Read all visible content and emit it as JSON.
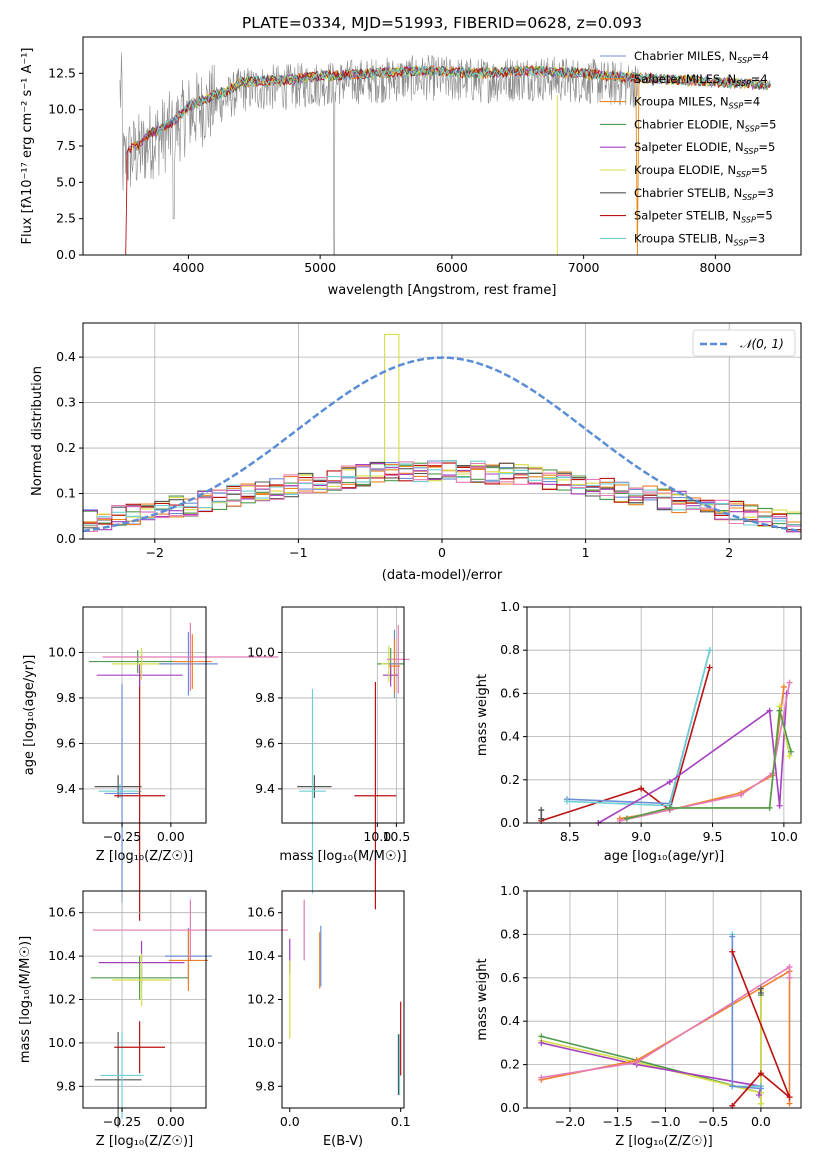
{
  "title": "PLATE=0334, MJD=51993, FIBERID=0628, z=0.093",
  "colors": [
    "#6b8fd6",
    "#f07f2a",
    "#e58a18",
    "#4f9a4f",
    "#a640c0",
    "#d8dd45",
    "#555555",
    "#bb1111",
    "#6fd0d4",
    "#e57ab8",
    "#f48484"
  ],
  "legend_normal": "𝒩(0, 1)",
  "chart_data": [
    {
      "type": "line",
      "title": "PLATE=0334, MJD=51993, FIBERID=0628, z=0.093",
      "xlabel": "wavelength [Angstrom, rest frame]",
      "ylabel": "Flux [fλ10⁻¹⁷ erg cm⁻² s⁻¹ A⁻¹]",
      "xlim": [
        3200,
        8650
      ],
      "ylim": [
        0,
        15
      ],
      "xticks": [
        "4000",
        "5000",
        "6000",
        "7000",
        "8000"
      ],
      "yticks": [
        "0.0",
        "2.5",
        "5.0",
        "7.5",
        "10.0",
        "12.5"
      ],
      "legend_position": "right",
      "series": [
        {
          "label": "Chabrier MILES, N",
          "sub": "SSP",
          "tail": "=4",
          "color": "#6b8fd6"
        },
        {
          "label": "Salpeter MILES, N",
          "sub": "SSP",
          "tail": "=4",
          "color": "#f07f2a"
        },
        {
          "label": "Kroupa MILES, N",
          "sub": "SSP",
          "tail": "=4",
          "color": "#e58a18"
        },
        {
          "label": "Chabrier ELODIE, N",
          "sub": "SSP",
          "tail": "=5",
          "color": "#4f9a4f"
        },
        {
          "label": "Salpeter ELODIE, N",
          "sub": "SSP",
          "tail": "=5",
          "color": "#a640c0"
        },
        {
          "label": "Kroupa ELODIE, N",
          "sub": "SSP",
          "tail": "=5",
          "color": "#d8dd45"
        },
        {
          "label": "Chabrier STELIB, N",
          "sub": "SSP",
          "tail": "=3",
          "color": "#555555"
        },
        {
          "label": "Salpeter STELIB, N",
          "sub": "SSP",
          "tail": "=5",
          "color": "#bb1111"
        },
        {
          "label": "Kroupa STELIB, N",
          "sub": "SSP",
          "tail": "=3",
          "color": "#6fd0d4"
        }
      ],
      "spectrum_nodes": {
        "x": [
          3500,
          3550,
          3650,
          3700,
          3800,
          3900,
          4000,
          4100,
          4200,
          4300,
          4400,
          4600,
          4800,
          5000,
          5200,
          5400,
          5600,
          5800,
          6000,
          6200,
          6400,
          6600,
          6800,
          7000,
          7200,
          7400,
          7600,
          7800,
          8000,
          8200,
          8400
        ],
        "y": [
          7.0,
          7.6,
          8.0,
          8.6,
          9.0,
          9.6,
          10.5,
          10.9,
          11.3,
          11.6,
          12.2,
          12.3,
          12.4,
          12.6,
          12.7,
          12.8,
          12.9,
          13.0,
          12.9,
          12.8,
          12.9,
          13.0,
          12.9,
          12.8,
          12.6,
          12.5,
          12.4,
          12.3,
          12.2,
          12.1,
          12.0
        ]
      },
      "data_end_x": 7420
    },
    {
      "type": "line",
      "xlabel": "(data-model)/error",
      "ylabel": "Normed distribution",
      "xlim": [
        -2.5,
        2.5
      ],
      "ylim": [
        0,
        0.475
      ],
      "xticks": [
        "−2",
        "−1",
        "0",
        "1",
        "2"
      ],
      "yticks": [
        "0.0",
        "0.1",
        "0.2",
        "0.3",
        "0.4"
      ],
      "grid": true,
      "legend_position": "top-right",
      "bins_start": -2.5,
      "bin_width": 0.1,
      "reference": "normal(0, 1)"
    },
    {
      "type": "scatter",
      "xlabel": "Z [log₁₀(Z/Z☉)]",
      "ylabel": "age  [log₁₀(age/yr)]",
      "xlim": [
        -0.45,
        0.18
      ],
      "ylim": [
        9.25,
        10.2
      ],
      "xticks": [
        "−0.25",
        "0.00"
      ],
      "yticks": [
        "9.4",
        "9.6",
        "9.8",
        "10.0"
      ],
      "grid": true,
      "points": [
        {
          "x": -0.27,
          "y": 9.41,
          "xerr": 0.12,
          "yerr": 0.05,
          "color": "#555555"
        },
        {
          "x": -0.26,
          "y": 9.39,
          "xerr": 0.11,
          "yerr": 0.03,
          "color": "#6fd0d4"
        },
        {
          "x": -0.25,
          "y": 9.38,
          "xerr": 0.09,
          "yerr": 0.48,
          "color": "#6b8fd6"
        },
        {
          "x": -0.16,
          "y": 9.37,
          "xerr": 0.13,
          "yerr": 0.55,
          "color": "#bb1111"
        },
        {
          "x": -0.17,
          "y": 9.96,
          "xerr": 0.25,
          "yerr": 0.05,
          "color": "#4f9a4f"
        },
        {
          "x": -0.16,
          "y": 9.9,
          "xerr": 0.22,
          "yerr": 0.05,
          "color": "#a640c0"
        },
        {
          "x": -0.15,
          "y": 9.95,
          "xerr": 0.15,
          "yerr": 0.07,
          "color": "#d8dd45"
        },
        {
          "x": 0.09,
          "y": 9.95,
          "xerr": 0.15,
          "yerr": 0.14,
          "color": "#6b8fd6"
        },
        {
          "x": 0.1,
          "y": 9.98,
          "xerr": 0.45,
          "yerr": 0.15,
          "color": "#e57ab8"
        },
        {
          "x": 0.11,
          "y": 9.96,
          "xerr": 0.1,
          "yerr": 0.12,
          "color": "#f07f2a"
        }
      ]
    },
    {
      "type": "scatter",
      "xlabel": "mass [log₁₀(M/M☉)]",
      "ylabel": "",
      "xlim": [
        7.5,
        10.7
      ],
      "ylim": [
        9.25,
        10.2
      ],
      "xticks": [
        "10.0",
        "10.5"
      ],
      "yticks": [
        "9.4",
        "9.6",
        "9.8",
        "10.0"
      ],
      "grid": true,
      "points": [
        {
          "x": 8.35,
          "y": 9.41,
          "xerr": 0.45,
          "yerr": 0.05,
          "color": "#555555"
        },
        {
          "x": 8.3,
          "y": 9.39,
          "xerr": 0.35,
          "yerr": 0.45,
          "color": "#6fd0d4"
        },
        {
          "x": 9.95,
          "y": 9.37,
          "xerr": 0.55,
          "yerr": 0.5,
          "color": "#bb1111"
        },
        {
          "x": 10.35,
          "y": 9.95,
          "xerr": 0.35,
          "yerr": 0.07,
          "color": "#4f9a4f"
        },
        {
          "x": 10.35,
          "y": 9.9,
          "xerr": 0.2,
          "yerr": 0.05,
          "color": "#a640c0"
        },
        {
          "x": 10.3,
          "y": 9.95,
          "xerr": 0.2,
          "yerr": 0.08,
          "color": "#d8dd45"
        },
        {
          "x": 10.45,
          "y": 9.95,
          "xerr": 0.15,
          "yerr": 0.15,
          "color": "#6b8fd6"
        },
        {
          "x": 10.55,
          "y": 9.97,
          "xerr": 0.3,
          "yerr": 0.15,
          "color": "#e57ab8"
        },
        {
          "x": 10.45,
          "y": 9.94,
          "xerr": 0.15,
          "yerr": 0.12,
          "color": "#f07f2a"
        }
      ]
    },
    {
      "type": "line",
      "xlabel": "age  [log₁₀(age/yr)]",
      "ylabel": "mass weight",
      "xlim": [
        8.2,
        10.12
      ],
      "ylim": [
        0,
        1.0
      ],
      "xticks": [
        "8.5",
        "9.0",
        "9.5",
        "10.0"
      ],
      "yticks": [
        "0.0",
        "0.2",
        "0.4",
        "0.6",
        "0.8",
        "1.0"
      ],
      "grid": true,
      "series": [
        {
          "color": "#bb1111",
          "x": [
            8.3,
            9.0,
            9.2,
            9.48
          ],
          "y": [
            0.01,
            0.16,
            0.06,
            0.72
          ]
        },
        {
          "color": "#6b8fd6",
          "x": [
            8.48,
            9.2,
            9.48
          ],
          "y": [
            0.11,
            0.09,
            0.8
          ]
        },
        {
          "color": "#6fd0d4",
          "x": [
            8.48,
            9.2,
            9.48
          ],
          "y": [
            0.1,
            0.08,
            0.8
          ]
        },
        {
          "color": "#555555",
          "x": [
            8.3,
            8.3
          ],
          "y": [
            0.02,
            0.06
          ]
        },
        {
          "color": "#a640c0",
          "x": [
            8.7,
            9.2,
            9.9,
            9.97,
            10.02
          ],
          "y": [
            0.0,
            0.19,
            0.52,
            0.08,
            0.6
          ]
        },
        {
          "color": "#f07f2a",
          "x": [
            8.85,
            9.2,
            9.7,
            9.92,
            10.0
          ],
          "y": [
            0.02,
            0.06,
            0.14,
            0.22,
            0.63
          ]
        },
        {
          "color": "#e57ab8",
          "x": [
            8.85,
            9.2,
            9.7,
            9.92,
            10.04
          ],
          "y": [
            0.01,
            0.06,
            0.13,
            0.23,
            0.65
          ]
        },
        {
          "color": "#d8dd45",
          "x": [
            8.9,
            9.2,
            9.9,
            9.97,
            10.04
          ],
          "y": [
            0.02,
            0.07,
            0.07,
            0.54,
            0.31
          ]
        },
        {
          "color": "#4f9a4f",
          "x": [
            8.9,
            9.2,
            9.9,
            9.97,
            10.05
          ],
          "y": [
            0.02,
            0.07,
            0.07,
            0.52,
            0.33
          ]
        }
      ]
    },
    {
      "type": "scatter",
      "xlabel": "Z [log₁₀(Z/Z☉)]",
      "ylabel": "mass [log₁₀(M/M☉)]",
      "xlim": [
        -0.45,
        0.18
      ],
      "ylim": [
        9.7,
        10.7
      ],
      "xticks": [
        "−0.25",
        "0.00"
      ],
      "yticks": [
        "9.8",
        "10.0",
        "10.2",
        "10.4",
        "10.6"
      ],
      "grid": true,
      "points": [
        {
          "x": -0.27,
          "y": 9.83,
          "xerr": 0.12,
          "yerr": 0.22,
          "color": "#555555"
        },
        {
          "x": -0.25,
          "y": 9.85,
          "xerr": 0.11,
          "yerr": 0.2,
          "color": "#6fd0d4"
        },
        {
          "x": -0.16,
          "y": 9.98,
          "xerr": 0.13,
          "yerr": 0.12,
          "color": "#bb1111"
        },
        {
          "x": -0.16,
          "y": 10.3,
          "xerr": 0.25,
          "yerr": 0.1,
          "color": "#4f9a4f"
        },
        {
          "x": -0.15,
          "y": 10.37,
          "xerr": 0.22,
          "yerr": 0.1,
          "color": "#a640c0"
        },
        {
          "x": -0.15,
          "y": 10.29,
          "xerr": 0.15,
          "yerr": 0.12,
          "color": "#d8dd45"
        },
        {
          "x": 0.09,
          "y": 10.4,
          "xerr": 0.12,
          "yerr": 0.13,
          "color": "#6b8fd6"
        },
        {
          "x": 0.1,
          "y": 10.52,
          "xerr": 0.5,
          "yerr": 0.14,
          "color": "#e57ab8"
        },
        {
          "x": 0.09,
          "y": 10.38,
          "xerr": 0.1,
          "yerr": 0.14,
          "color": "#f07f2a"
        }
      ]
    },
    {
      "type": "scatter",
      "xlabel": "E(B-V)",
      "ylabel": "",
      "xlim": [
        -0.007,
        0.103
      ],
      "ylim": [
        9.7,
        10.7
      ],
      "xticks": [
        "0.0",
        "0.1"
      ],
      "yticks": [
        "9.8",
        "10.0",
        "10.2",
        "10.4",
        "10.6"
      ],
      "grid": false,
      "points": [
        {
          "x": 0.0,
          "y": 10.4,
          "yerr": 0.08,
          "color": "#a640c0"
        },
        {
          "x": 0.0,
          "y": 10.2,
          "yerr": 0.18,
          "color": "#d8dd45"
        },
        {
          "x": 0.013,
          "y": 10.52,
          "yerr": 0.14,
          "color": "#e57ab8"
        },
        {
          "x": 0.027,
          "y": 10.38,
          "yerr": 0.13,
          "color": "#f07f2a"
        },
        {
          "x": 0.028,
          "y": 10.4,
          "yerr": 0.14,
          "color": "#6b8fd6"
        },
        {
          "x": 0.098,
          "y": 9.9,
          "yerr": 0.14,
          "color": "#555555"
        },
        {
          "x": 0.099,
          "y": 9.9,
          "yerr": 0.14,
          "color": "#6fd0d4"
        },
        {
          "x": 0.1,
          "y": 10.02,
          "yerr": 0.17,
          "color": "#bb1111"
        }
      ]
    },
    {
      "type": "line",
      "xlabel": "Z [log₁₀(Z/Z☉)]",
      "ylabel": "mass weight",
      "xlim": [
        -2.45,
        0.42
      ],
      "ylim": [
        0,
        1.0
      ],
      "xticks": [
        "−2.0",
        "−1.5",
        "−1.0",
        "−0.5",
        "0.0"
      ],
      "yticks": [
        "0.0",
        "0.2",
        "0.4",
        "0.6",
        "0.8",
        "1.0"
      ],
      "grid": true,
      "series": [
        {
          "color": "#4f9a4f",
          "x": [
            -2.3,
            -1.3,
            0.0,
            0.0,
            0.0
          ],
          "y": [
            0.33,
            0.22,
            0.07,
            0.52,
            0.02
          ]
        },
        {
          "color": "#d8dd45",
          "x": [
            -2.3,
            -1.3,
            0.0,
            0.0,
            0.0
          ],
          "y": [
            0.31,
            0.21,
            0.07,
            0.54,
            0.02
          ]
        },
        {
          "color": "#a640c0",
          "x": [
            -2.3,
            -1.3,
            0.0,
            -0.02
          ],
          "y": [
            0.3,
            0.2,
            0.1,
            0.06
          ]
        },
        {
          "color": "#f07f2a",
          "x": [
            -2.3,
            -1.3,
            0.3,
            0.3
          ],
          "y": [
            0.13,
            0.22,
            0.63,
            0.02
          ]
        },
        {
          "color": "#e57ab8",
          "x": [
            -2.3,
            -1.3,
            0.3,
            0.3
          ],
          "y": [
            0.14,
            0.21,
            0.65,
            0.6
          ]
        },
        {
          "color": "#6fd0d4",
          "x": [
            -0.3,
            -0.3,
            0.0
          ],
          "y": [
            0.8,
            0.1,
            0.1
          ]
        },
        {
          "color": "#6b8fd6",
          "x": [
            -0.3,
            -0.3,
            0.0
          ],
          "y": [
            0.79,
            0.1,
            0.09
          ]
        },
        {
          "color": "#bb1111",
          "x": [
            -0.3,
            0.0,
            0.3,
            -0.3
          ],
          "y": [
            0.01,
            0.16,
            0.05,
            0.72
          ]
        },
        {
          "color": "#555555",
          "x": [
            0.0,
            0.0
          ],
          "y": [
            0.53,
            0.55
          ]
        }
      ]
    }
  ]
}
